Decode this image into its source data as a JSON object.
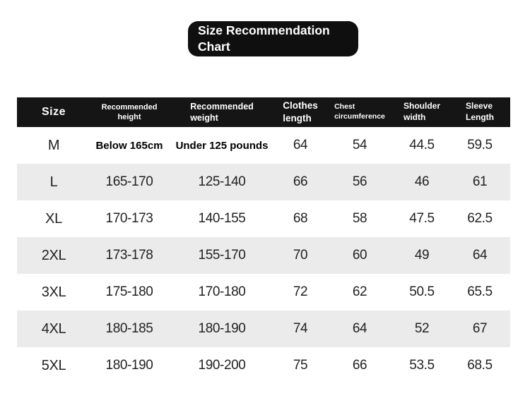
{
  "title": {
    "line1": "Size Recommendation",
    "line2": "Chart"
  },
  "colors": {
    "title_bg": "#0f0f0f",
    "title_text": "#ffffff",
    "header_bg": "#151515",
    "header_text": "#ffffff",
    "row_alt_bg": "#ebebeb",
    "body_text": "#222222"
  },
  "chart_data": {
    "type": "table",
    "title": "Size Recommendation Chart",
    "columns": [
      [
        "Size",
        ""
      ],
      [
        "Recommended",
        "height"
      ],
      [
        "Recommended",
        "weight"
      ],
      [
        "Clothes",
        "length"
      ],
      [
        "Chest",
        "circumference"
      ],
      [
        "Shoulder",
        "width"
      ],
      [
        "Sleeve",
        "Length"
      ]
    ],
    "rows": [
      [
        "M",
        "Below 165cm",
        "Under 125 pounds",
        "64",
        "54",
        "44.5",
        "59.5"
      ],
      [
        "L",
        "165-170",
        "125-140",
        "66",
        "56",
        "46",
        "61"
      ],
      [
        "XL",
        "170-173",
        "140-155",
        "68",
        "58",
        "47.5",
        "62.5"
      ],
      [
        "2XL",
        "173-178",
        "155-170",
        "70",
        "60",
        "49",
        "64"
      ],
      [
        "3XL",
        "175-180",
        "170-180",
        "72",
        "62",
        "50.5",
        "65.5"
      ],
      [
        "4XL",
        "180-185",
        "180-190",
        "74",
        "64",
        "52",
        "67"
      ],
      [
        "5XL",
        "180-190",
        "190-200",
        "75",
        "66",
        "53.5",
        "68.5"
      ]
    ]
  }
}
